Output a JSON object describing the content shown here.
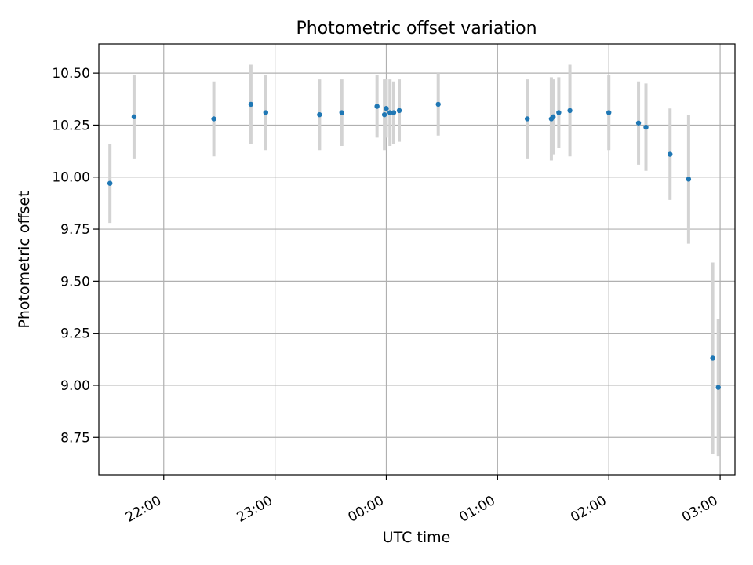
{
  "chart_data": {
    "type": "scatter",
    "title": "Photometric offset variation",
    "xlabel": "UTC time",
    "ylabel": "Photometric offset",
    "xlim": [
      "21:25",
      "03:08"
    ],
    "ylim": [
      8.57,
      10.64
    ],
    "grid": true,
    "x_ticks": [
      "22:00",
      "23:00",
      "00:00",
      "01:00",
      "02:00",
      "03:00"
    ],
    "y_ticks": [
      8.75,
      9.0,
      9.25,
      9.5,
      9.75,
      10.0,
      10.25,
      10.5
    ],
    "y_tick_labels": [
      "8.75",
      "9.00",
      "9.25",
      "9.50",
      "9.75",
      "10.00",
      "10.25",
      "10.50"
    ],
    "colors": {
      "marker": "#1f77b4",
      "errorbar": "#d3d3d3",
      "grid": "#b0b0b0"
    },
    "points": [
      {
        "time": "21:31",
        "y": 9.97,
        "err": 0.19
      },
      {
        "time": "21:44",
        "y": 10.29,
        "err": 0.2
      },
      {
        "time": "22:27",
        "y": 10.28,
        "err": 0.18
      },
      {
        "time": "22:47",
        "y": 10.35,
        "err": 0.19
      },
      {
        "time": "22:55",
        "y": 10.31,
        "err": 0.18
      },
      {
        "time": "23:24",
        "y": 10.3,
        "err": 0.17
      },
      {
        "time": "23:36",
        "y": 10.31,
        "err": 0.16
      },
      {
        "time": "23:55",
        "y": 10.34,
        "err": 0.15
      },
      {
        "time": "23:59",
        "y": 10.3,
        "err": 0.17
      },
      {
        "time": "00:00",
        "y": 10.33,
        "err": 0.14
      },
      {
        "time": "00:02",
        "y": 10.31,
        "err": 0.16
      },
      {
        "time": "00:04",
        "y": 10.31,
        "err": 0.15
      },
      {
        "time": "00:07",
        "y": 10.32,
        "err": 0.15
      },
      {
        "time": "00:28",
        "y": 10.35,
        "err": 0.15
      },
      {
        "time": "01:16",
        "y": 10.28,
        "err": 0.19
      },
      {
        "time": "01:29",
        "y": 10.28,
        "err": 0.2
      },
      {
        "time": "01:30",
        "y": 10.29,
        "err": 0.18
      },
      {
        "time": "01:33",
        "y": 10.31,
        "err": 0.17
      },
      {
        "time": "01:39",
        "y": 10.32,
        "err": 0.22
      },
      {
        "time": "02:00",
        "y": 10.31,
        "err": 0.18
      },
      {
        "time": "02:16",
        "y": 10.26,
        "err": 0.2
      },
      {
        "time": "02:20",
        "y": 10.24,
        "err": 0.21
      },
      {
        "time": "02:33",
        "y": 10.11,
        "err": 0.22
      },
      {
        "time": "02:43",
        "y": 9.99,
        "err": 0.31
      },
      {
        "time": "02:56",
        "y": 9.13,
        "err": 0.46
      },
      {
        "time": "02:59",
        "y": 8.99,
        "err": 0.33
      }
    ]
  }
}
